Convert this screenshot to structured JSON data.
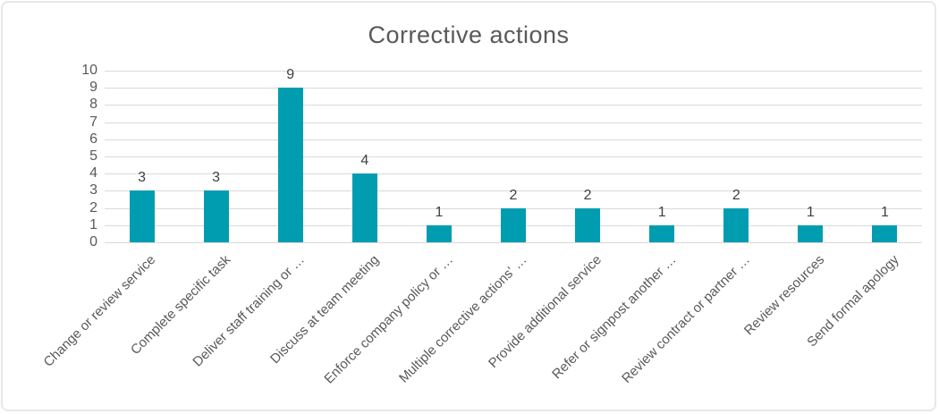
{
  "chart_data": {
    "type": "bar",
    "title": "Corrective actions",
    "categories": [
      "Change or review service",
      "Complete specific task",
      "Deliver staff training or …",
      "Discuss at team meeting",
      "Enforce company policy or …",
      "Multiple corrective actions' …",
      "Provide additional service",
      "Refer or signpost another …",
      "Review contract or partner …",
      "Review resources",
      "Send formal apology"
    ],
    "values": [
      3,
      3,
      9,
      4,
      1,
      2,
      2,
      1,
      2,
      1,
      1
    ],
    "data_labels": [
      3,
      3,
      9,
      4,
      1,
      2,
      2,
      1,
      2,
      1,
      1
    ],
    "xlabel": "",
    "ylabel": "",
    "ylim": [
      0,
      10
    ],
    "ytick_step": 1,
    "grid": "horizontal",
    "legend_position": "none",
    "x_label_rotation_deg": 45
  },
  "colors": {
    "bar": "#009db0",
    "title_text": "#595959",
    "axis_text": "#595959",
    "data_label_text": "#404040",
    "gridline": "#d9d9d9",
    "frame_border": "#e7e7e7",
    "background": "#ffffff"
  }
}
